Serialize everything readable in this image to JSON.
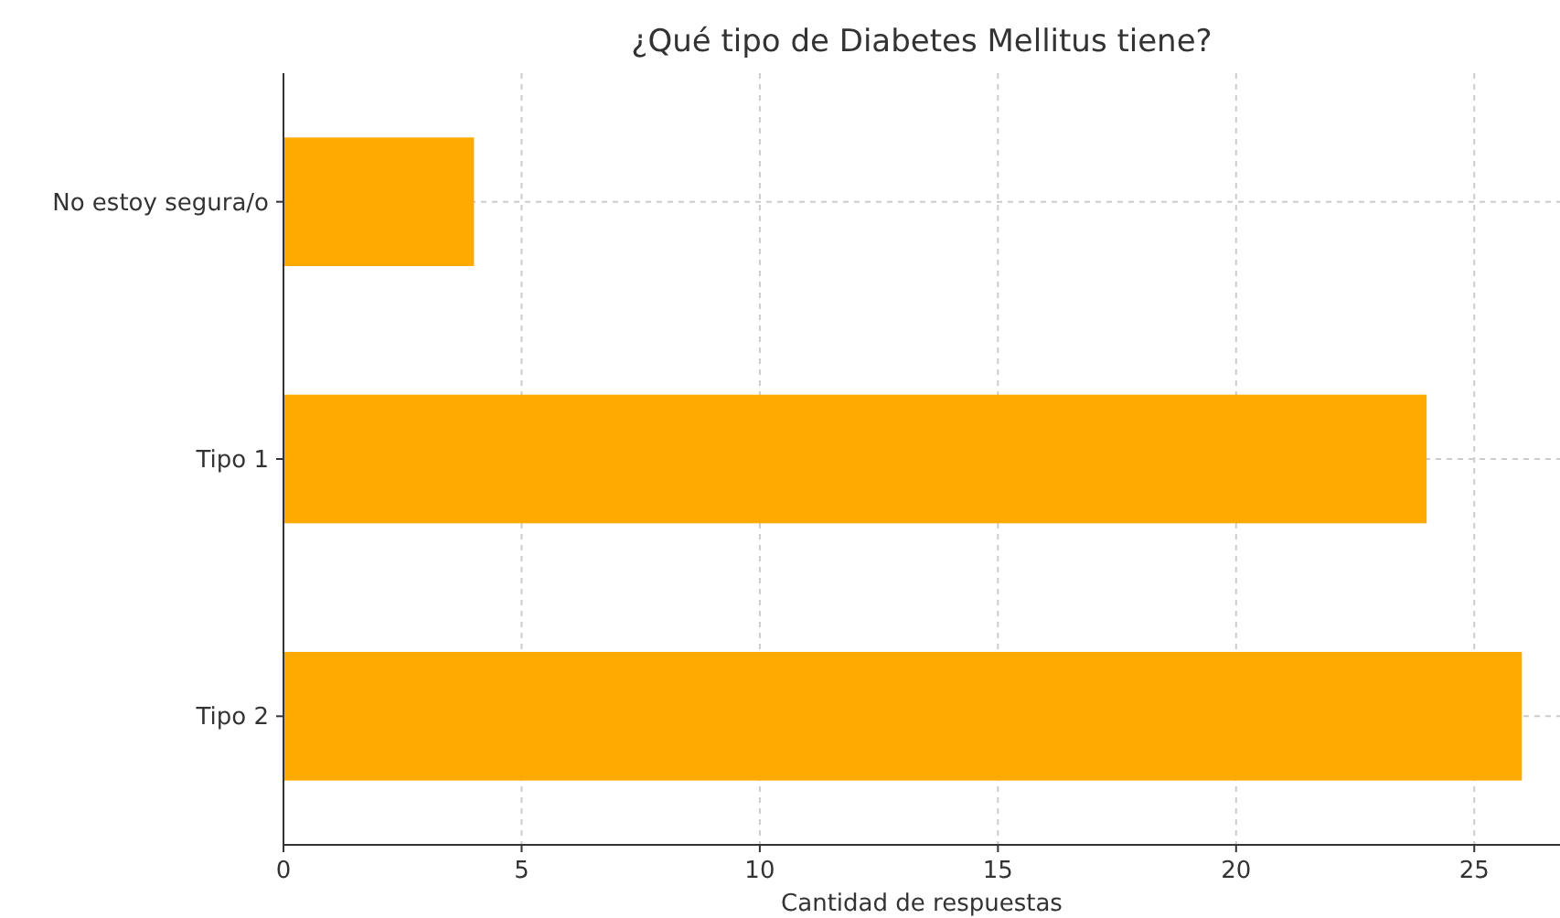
{
  "chart_data": {
    "type": "bar",
    "orientation": "horizontal",
    "title": "¿Qué tipo de Diabetes Mellitus tiene?",
    "xlabel": "Cantidad de respuestas",
    "categories": [
      "No estoy segura/o",
      "Tipo 1",
      "Tipo 2"
    ],
    "values": [
      4,
      24,
      26
    ],
    "color": "#ffaa00",
    "xlim": [
      0,
      26.8
    ],
    "xticks": [
      0,
      5,
      10,
      15,
      20,
      25
    ],
    "grid": true
  }
}
